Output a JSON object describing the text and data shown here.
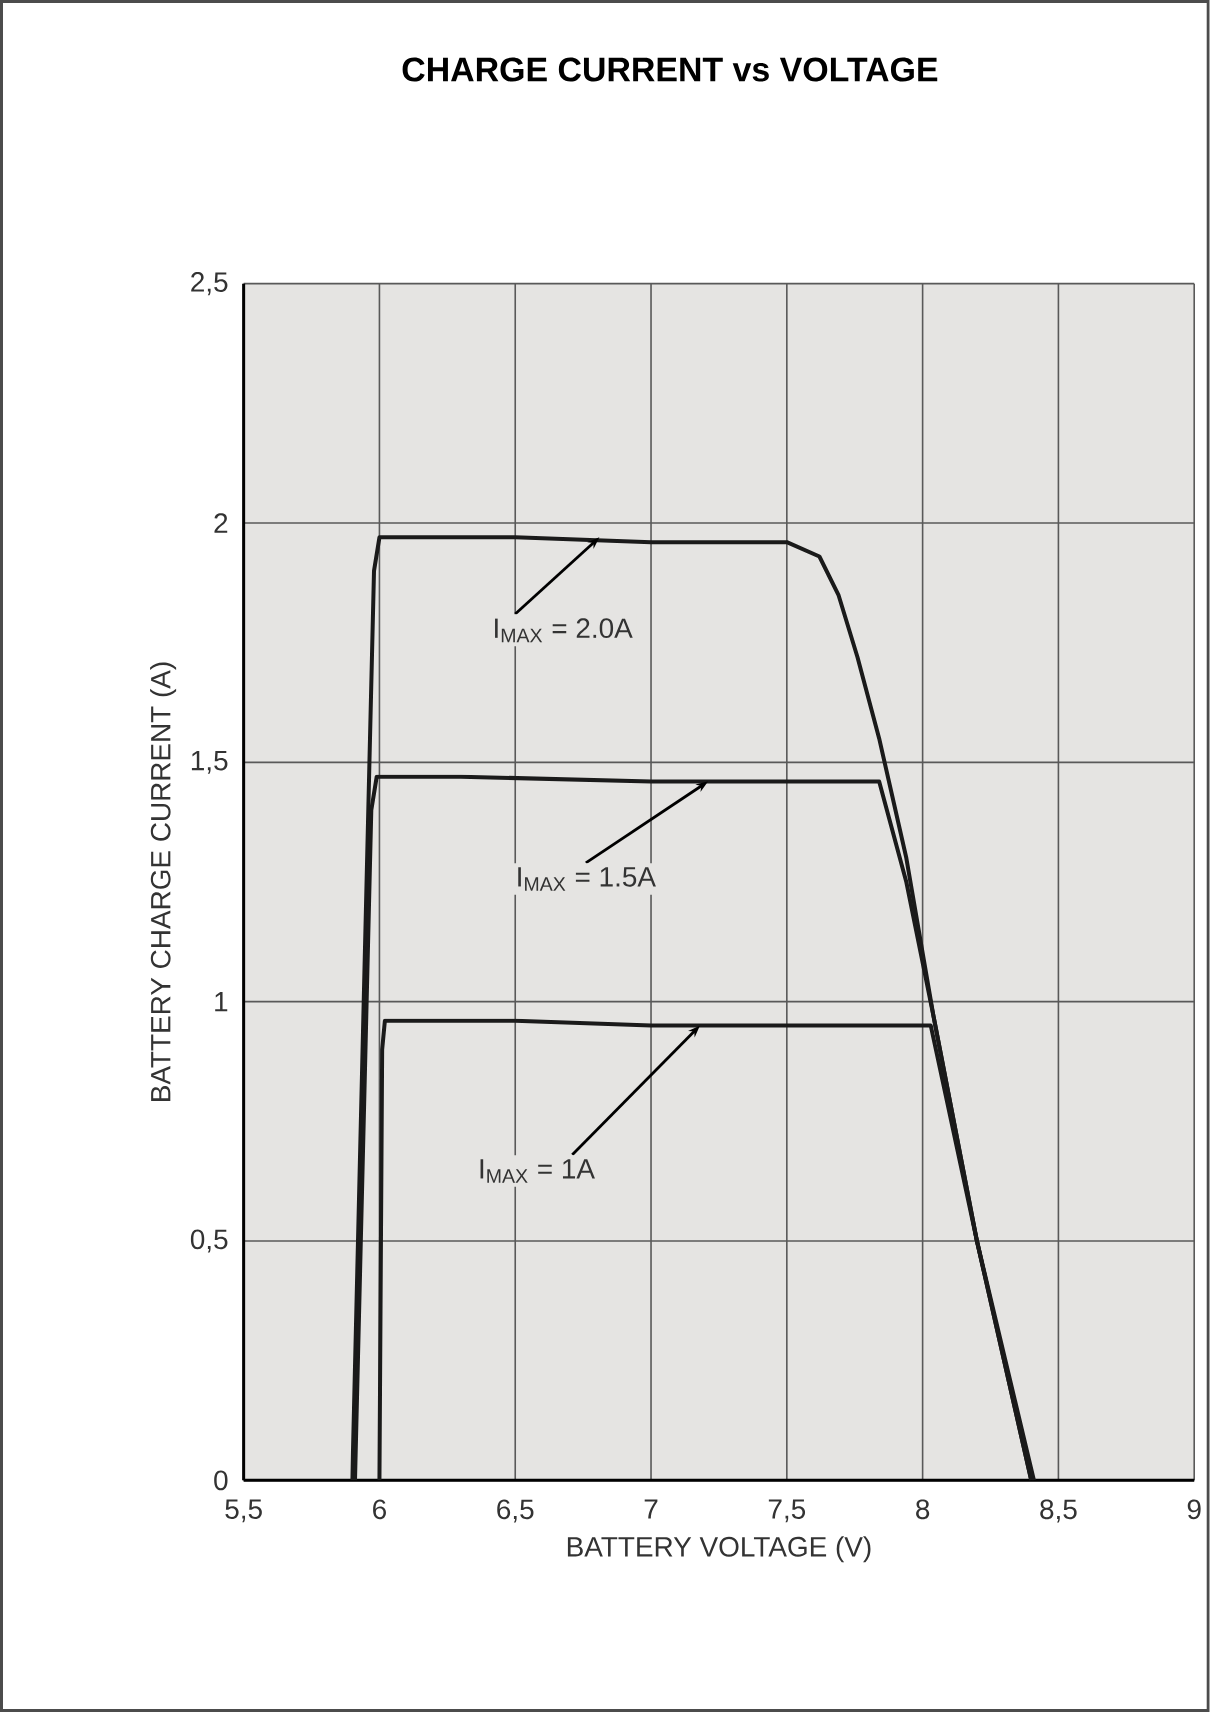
{
  "chart_data": {
    "type": "line",
    "title": "CHARGE CURRENT vs VOLTAGE",
    "xlabel": "BATTERY VOLTAGE (V)",
    "ylabel": "BATTERY CHARGE CURRENT (A)",
    "xlim": [
      5.5,
      9
    ],
    "ylim": [
      0,
      2.5
    ],
    "xticks": [
      {
        "value": 5.5,
        "label": "5,5"
      },
      6,
      {
        "value": 6.5,
        "label": "6,5"
      },
      7,
      {
        "value": 7.5,
        "label": "7,5"
      },
      8,
      {
        "value": 8.5,
        "label": "8,5"
      },
      9
    ],
    "yticks": [
      0,
      {
        "value": 0.5,
        "label": "0,5"
      },
      1,
      {
        "value": 1.5,
        "label": "1,5"
      },
      2,
      {
        "value": 2.5,
        "label": "2,5"
      }
    ],
    "grid": true,
    "marker": "none",
    "line_style": "solid",
    "series": [
      {
        "color": "#1a1a1a",
        "x": [
          5.9,
          5.98,
          6.0,
          6.5,
          7.0,
          7.5,
          7.62,
          7.69,
          7.76,
          7.84,
          7.94,
          8.04,
          8.2,
          8.4
        ],
        "values": [
          0,
          1.9,
          1.97,
          1.97,
          1.96,
          1.96,
          1.93,
          1.85,
          1.72,
          1.55,
          1.3,
          0.97,
          0.5,
          0
        ]
      },
      {
        "color": "#1a1a1a",
        "x": [
          5.91,
          5.97,
          5.99,
          6.3,
          7.0,
          7.5,
          7.84,
          7.94,
          8.04,
          8.2,
          8.4
        ],
        "values": [
          0,
          1.4,
          1.47,
          1.47,
          1.46,
          1.46,
          1.46,
          1.25,
          0.97,
          0.5,
          0
        ]
      },
      {
        "color": "#1a1a1a",
        "x": [
          6.0,
          6.01,
          6.02,
          6.5,
          7.0,
          7.5,
          8.03,
          8.2,
          8.41
        ],
        "values": [
          0,
          0.9,
          0.96,
          0.96,
          0.95,
          0.95,
          0.95,
          0.5,
          0
        ]
      }
    ],
    "annotations": [
      {
        "text": "I$_{MAX}$ = 2.0A",
        "x": 6.81,
        "y": 1.97
      },
      {
        "text": "I$_{MAX}$ = 1.5A",
        "x": 7.21,
        "y": 1.46
      },
      {
        "text": "I$_{MAX}$ = 1A",
        "x": 7.18,
        "y": 0.95
      }
    ]
  }
}
